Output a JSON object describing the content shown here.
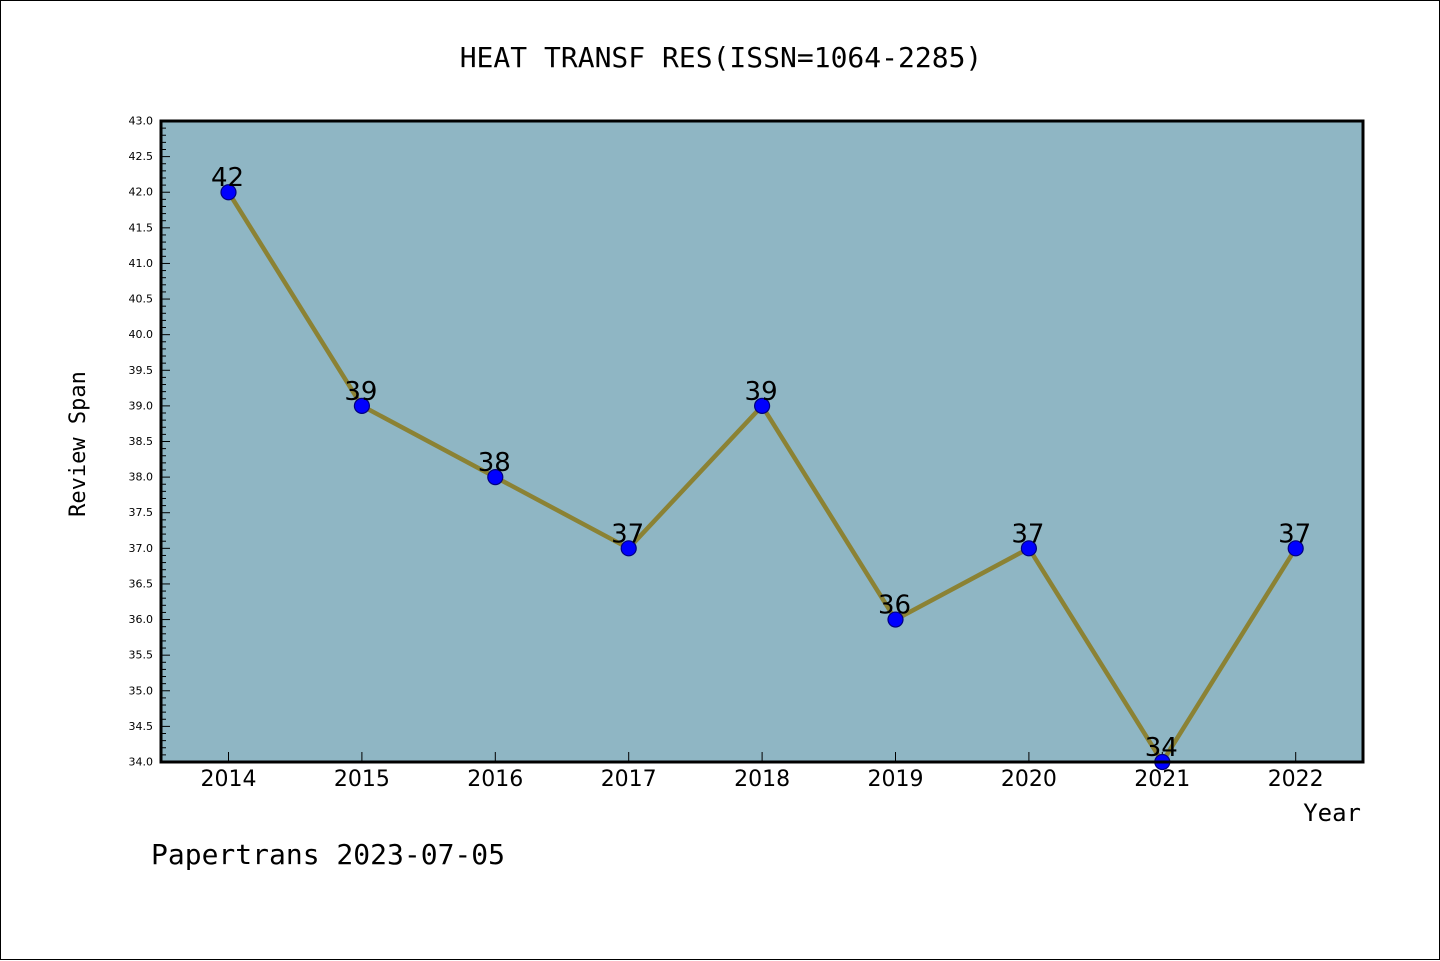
{
  "chart_data": {
    "type": "line",
    "title": "HEAT TRANSF RES(ISSN=1064-2285)",
    "xlabel": "Year",
    "ylabel": "Review Span",
    "categories": [
      "2014",
      "2015",
      "2016",
      "2017",
      "2018",
      "2019",
      "2020",
      "2021",
      "2022"
    ],
    "series": [
      {
        "values": [
          42,
          39,
          38,
          37,
          39,
          36,
          37,
          34,
          37
        ]
      }
    ],
    "data_labels": [
      "42",
      "39",
      "38",
      "37",
      "39",
      "36",
      "37",
      "34",
      "37"
    ],
    "ylim": [
      34.0,
      43.0
    ],
    "yticks_major": [
      "34.0",
      "34.5",
      "35.0",
      "35.5",
      "36.0",
      "36.5",
      "37.0",
      "37.5",
      "38.0",
      "38.5",
      "39.0",
      "39.5",
      "40.0",
      "40.5",
      "41.0",
      "41.5",
      "42.0",
      "42.5",
      "43.0"
    ],
    "grid": false,
    "legend": "none"
  },
  "footer": {
    "source": "Papertrans 2023-07-05"
  },
  "colors": {
    "plot_background": "#8fb6c4",
    "line": "#8b8234",
    "marker_fill": "#0000ff",
    "marker_edge": "#000080",
    "axes": "#000000"
  }
}
